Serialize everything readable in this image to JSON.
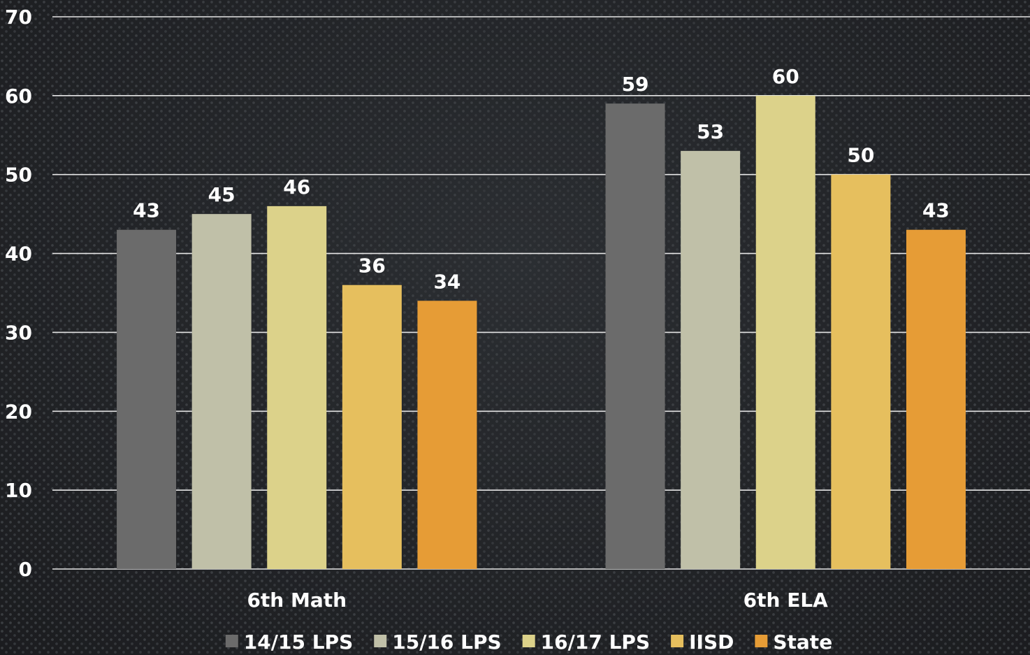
{
  "chart_data": {
    "type": "bar",
    "categories": [
      "6th Math",
      "6th ELA"
    ],
    "series": [
      {
        "name": "14/15 LPS",
        "values": [
          43,
          59
        ],
        "color": "#6b6b6b"
      },
      {
        "name": "15/16 LPS",
        "values": [
          45,
          53
        ],
        "color": "#c0c0a8"
      },
      {
        "name": "16/17 LPS",
        "values": [
          46,
          60
        ],
        "color": "#dcd28a"
      },
      {
        "name": "IISD",
        "values": [
          36,
          50
        ],
        "color": "#e6bf5e"
      },
      {
        "name": "State",
        "values": [
          34,
          43
        ],
        "color": "#e69c36"
      }
    ],
    "yticks": [
      "0",
      "10",
      "20",
      "30",
      "40",
      "50",
      "60",
      "70"
    ],
    "ylim": [
      0,
      70
    ],
    "grid": true,
    "legend_position": "bottom",
    "data_labels": true
  }
}
